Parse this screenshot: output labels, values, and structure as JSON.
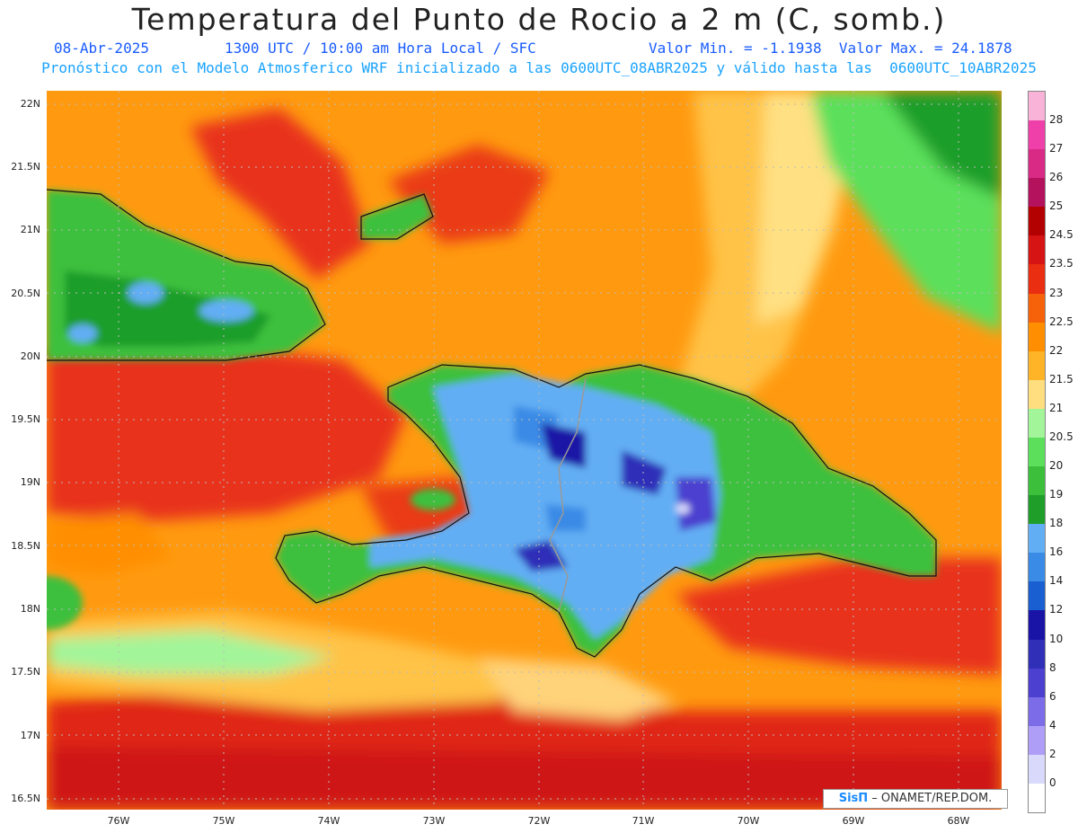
{
  "header": {
    "title": "Temperatura del Punto de Rocio a 2 m (C, somb.)",
    "date": "08-Abr-2025",
    "time": "1300 UTC / 10:00 am Hora Local / SFC",
    "minmax": "Valor Min. = -1.1938  Valor Max. = 24.1878",
    "model_info": "Pronóstico con el Modelo Atmosferico WRF inicializado a las 0600UTC_08ABR2025 y válido hasta las  0600UTC_10ABR2025"
  },
  "axes": {
    "lat_labels": [
      "22N",
      "21.5N",
      "21N",
      "20.5N",
      "20N",
      "19.5N",
      "19N",
      "18.5N",
      "18N",
      "17.5N",
      "17N",
      "16.5N"
    ],
    "lon_labels": [
      "76W",
      "75W",
      "74W",
      "73W",
      "72W",
      "71W",
      "70W",
      "69W",
      "68W"
    ]
  },
  "colorbar": {
    "labels": [
      "28",
      "27",
      "26",
      "25",
      "24.5",
      "23.5",
      "23",
      "22.5",
      "22",
      "21.5",
      "21",
      "20.5",
      "20",
      "19",
      "18",
      "16",
      "14",
      "12",
      "10",
      "8",
      "6",
      "4",
      "2",
      "0"
    ],
    "colors": [
      "#f9b3d9",
      "#ef3fa8",
      "#d92b86",
      "#b5125e",
      "#b30000",
      "#d71414",
      "#ea2e12",
      "#f5620a",
      "#ff8f00",
      "#ffb326",
      "#ffde80",
      "#a3f59a",
      "#5ce05c",
      "#3cc03c",
      "#1f9e2a",
      "#62aef4",
      "#3a8be6",
      "#1a5fd1",
      "#1a14a6",
      "#2f2fb8",
      "#4b40cf",
      "#7d6ce8",
      "#ae9ef7",
      "#d9d9fc",
      "#ffffff"
    ]
  },
  "credit": {
    "logo": "SisΠ",
    "text": " – ONAMET/REP.DOM."
  }
}
